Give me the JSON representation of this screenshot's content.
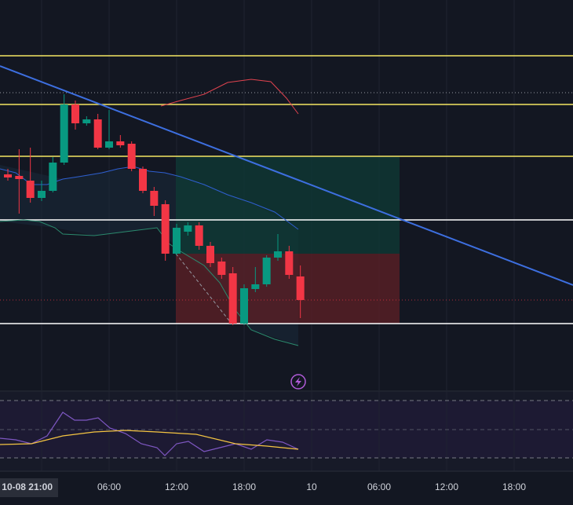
{
  "chart_data": {
    "type": "candlestick",
    "x_labels": [
      "10-08 21:00",
      "06:00",
      "12:00",
      "18:00",
      "10",
      "06:00",
      "12:00",
      "18:00"
    ],
    "ylim": [
      0,
      495
    ],
    "up_color": "#089981",
    "down_color": "#f23645",
    "open": [
      273,
      271,
      265,
      243,
      252,
      288,
      362,
      338,
      343,
      307,
      315,
      312,
      280,
      252,
      235,
      172,
      200,
      208,
      182,
      162,
      147,
      83,
      127,
      133,
      167,
      175,
      143
    ],
    "high": [
      280,
      305,
      307,
      265,
      295,
      375,
      367,
      347,
      350,
      355,
      323,
      315,
      283,
      257,
      240,
      210,
      212,
      212,
      187,
      167,
      155,
      133,
      155,
      170,
      197,
      182,
      157
    ],
    "low": [
      265,
      223,
      237,
      239,
      250,
      285,
      330,
      335,
      305,
      305,
      307,
      277,
      249,
      220,
      163,
      170,
      195,
      177,
      155,
      140,
      81,
      81,
      123,
      130,
      163,
      140,
      90
    ],
    "close": [
      269,
      267,
      243,
      252,
      288,
      362,
      338,
      343,
      307,
      315,
      310,
      280,
      252,
      233,
      172,
      205,
      208,
      182,
      160,
      145,
      83,
      128,
      133,
      167,
      175,
      145,
      113
    ],
    "levels": [
      424,
      362,
      296,
      215,
      83
    ],
    "level_colors": [
      "#f5e663",
      "#f5e663",
      "#f5e663",
      "#ffffff",
      "#ffffff"
    ]
  }
}
